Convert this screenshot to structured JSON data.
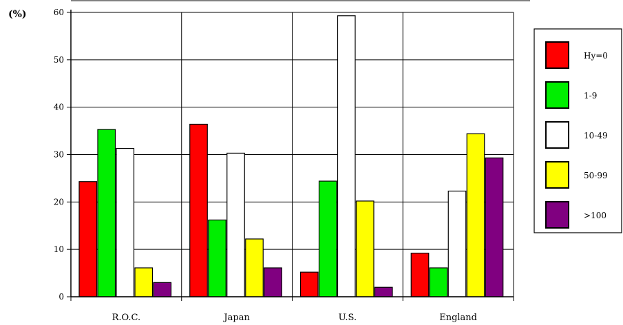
{
  "chart_data": {
    "type": "bar",
    "title": "",
    "ylabel": "(%)",
    "xlabel": "",
    "ylim": [
      0,
      60
    ],
    "yticks": [
      0,
      10,
      20,
      30,
      40,
      50,
      60
    ],
    "grid": true,
    "legend_position": "right",
    "categories": [
      "R.O.C.",
      "Japan",
      "U.S.",
      "England"
    ],
    "series": [
      {
        "name": "Hy=0",
        "color": "#ff0000",
        "values": [
          24.3,
          36.4,
          5.2,
          9.2
        ]
      },
      {
        "name": "1-9",
        "color": "#00ee00",
        "values": [
          35.3,
          16.2,
          24.4,
          6.1
        ]
      },
      {
        "name": "10-49",
        "color": "#ffffff",
        "values": [
          31.3,
          30.3,
          59.3,
          22.3
        ]
      },
      {
        "name": "50-99",
        "color": "#ffff00",
        "values": [
          6.1,
          12.2,
          20.2,
          34.4
        ]
      },
      {
        "name": ">100",
        "color": "#800080",
        "values": [
          3.0,
          6.1,
          2.0,
          29.3
        ]
      }
    ]
  }
}
